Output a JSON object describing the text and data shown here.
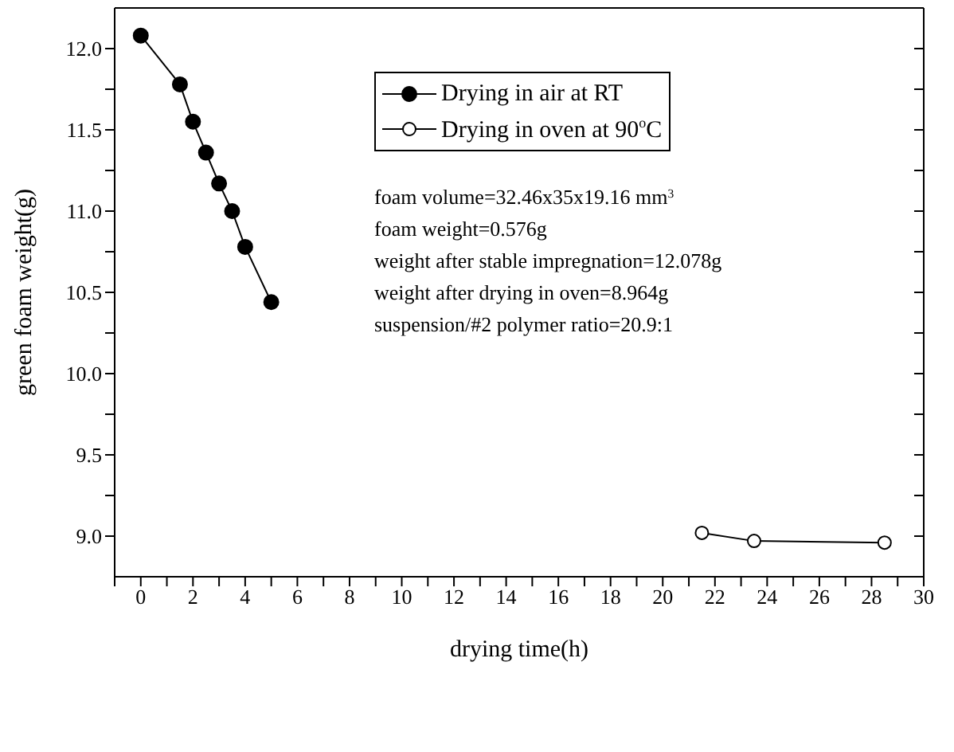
{
  "chart_data": {
    "type": "line",
    "xlabel": "drying time(h)",
    "ylabel": "green foam weight(g)",
    "xlim": [
      -1,
      30
    ],
    "ylim": [
      8.75,
      12.25
    ],
    "xticks": [
      {
        "value": -1,
        "label": null
      },
      0,
      {
        "value": 1,
        "label": null
      },
      2,
      {
        "value": 3,
        "label": null
      },
      4,
      {
        "value": 5,
        "label": null
      },
      6,
      {
        "value": 7,
        "label": null
      },
      8,
      {
        "value": 9,
        "label": null
      },
      10,
      {
        "value": 11,
        "label": null
      },
      12,
      {
        "value": 13,
        "label": null
      },
      14,
      {
        "value": 15,
        "label": null
      },
      16,
      {
        "value": 17,
        "label": null
      },
      18,
      {
        "value": 19,
        "label": null
      },
      20,
      {
        "value": 21,
        "label": null
      },
      22,
      {
        "value": 23,
        "label": null
      },
      24,
      {
        "value": 25,
        "label": null
      },
      26,
      {
        "value": 27,
        "label": null
      },
      28,
      {
        "value": 29,
        "label": null
      },
      30
    ],
    "yticks": [
      {
        "value": 9.0,
        "label": "9.0"
      },
      {
        "value": 9.25,
        "label": null
      },
      {
        "value": 9.5,
        "label": "9.5"
      },
      {
        "value": 9.75,
        "label": null
      },
      {
        "value": 10.0,
        "label": "10.0"
      },
      {
        "value": 10.25,
        "label": null
      },
      {
        "value": 10.5,
        "label": "10.5"
      },
      {
        "value": 10.75,
        "label": null
      },
      {
        "value": 11.0,
        "label": "11.0"
      },
      {
        "value": 11.25,
        "label": null
      },
      {
        "value": 11.5,
        "label": "11.5"
      },
      {
        "value": 11.75,
        "label": null
      },
      {
        "value": 12.0,
        "label": "12.0"
      }
    ],
    "grid": false,
    "legend": "top",
    "series": [
      {
        "name": "Drying in air at RT",
        "color": "#000000",
        "marker": "circle",
        "x": [
          0,
          1.5,
          2,
          2.5,
          3,
          3.5,
          4,
          5
        ],
        "values": [
          12.08,
          11.78,
          11.55,
          11.36,
          11.17,
          11.0,
          10.78,
          10.44
        ]
      },
      {
        "name": "Drying in oven at 90$^{o}$C",
        "color": "#000000",
        "marker": "open circle",
        "x": [
          21.5,
          23.5,
          28.5
        ],
        "values": [
          9.02,
          8.97,
          8.96
        ]
      }
    ],
    "annotations": [
      "foam volume=32.46x35x19.16 mm$^{3}$",
      "foam weight=0.576g",
      "weight after stable impregnation=12.078g",
      "weight after drying in oven=8.964g",
      "suspension/#2 polymer ratio=20.9:1"
    ]
  }
}
